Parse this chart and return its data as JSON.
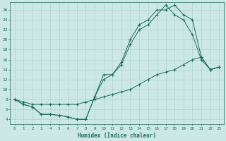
{
  "title": "",
  "xlabel": "Humidex (Indice chaleur)",
  "bg_color": "#cce8e4",
  "line_color": "#1a6b5a",
  "grid_color": "#aaccc8",
  "xlim": [
    -0.5,
    23.5
  ],
  "ylim": [
    3,
    27.5
  ],
  "xticks": [
    0,
    1,
    2,
    3,
    4,
    5,
    6,
    7,
    8,
    9,
    10,
    11,
    12,
    13,
    14,
    15,
    16,
    17,
    18,
    19,
    20,
    21,
    22,
    23
  ],
  "yticks": [
    4,
    6,
    8,
    10,
    12,
    14,
    16,
    18,
    20,
    22,
    24,
    26
  ],
  "line1_x": [
    0,
    1,
    2,
    3,
    4,
    5,
    6,
    7,
    8,
    9,
    10,
    11,
    12,
    13,
    14,
    15,
    16,
    17,
    18,
    19,
    20,
    21,
    22,
    23
  ],
  "line1_y": [
    8,
    7,
    6.5,
    5,
    5,
    4.8,
    4.5,
    4,
    4,
    8.5,
    13,
    13,
    15.5,
    20,
    23,
    24,
    26,
    26,
    27,
    25,
    24,
    16.5,
    14,
    14.5
  ],
  "line2_x": [
    0,
    1,
    2,
    3,
    4,
    5,
    6,
    7,
    8,
    9,
    10,
    11,
    12,
    13,
    14,
    15,
    16,
    17,
    18,
    19,
    20,
    21,
    22,
    23
  ],
  "line2_y": [
    8,
    7,
    6.5,
    5,
    5,
    4.8,
    4.5,
    4,
    4,
    8.5,
    12,
    13,
    15,
    19,
    22,
    23,
    25,
    27,
    25,
    24,
    21,
    16,
    14,
    14.5
  ],
  "line3_x": [
    0,
    1,
    2,
    3,
    4,
    5,
    6,
    7,
    8,
    9,
    10,
    11,
    12,
    13,
    14,
    15,
    16,
    17,
    18,
    19,
    20,
    21,
    22,
    23
  ],
  "line3_y": [
    8,
    7.5,
    7,
    7,
    7,
    7,
    7,
    7,
    7.5,
    8,
    8.5,
    9,
    9.5,
    10,
    11,
    12,
    13,
    13.5,
    14,
    15,
    16,
    16.5,
    14,
    14.5
  ]
}
